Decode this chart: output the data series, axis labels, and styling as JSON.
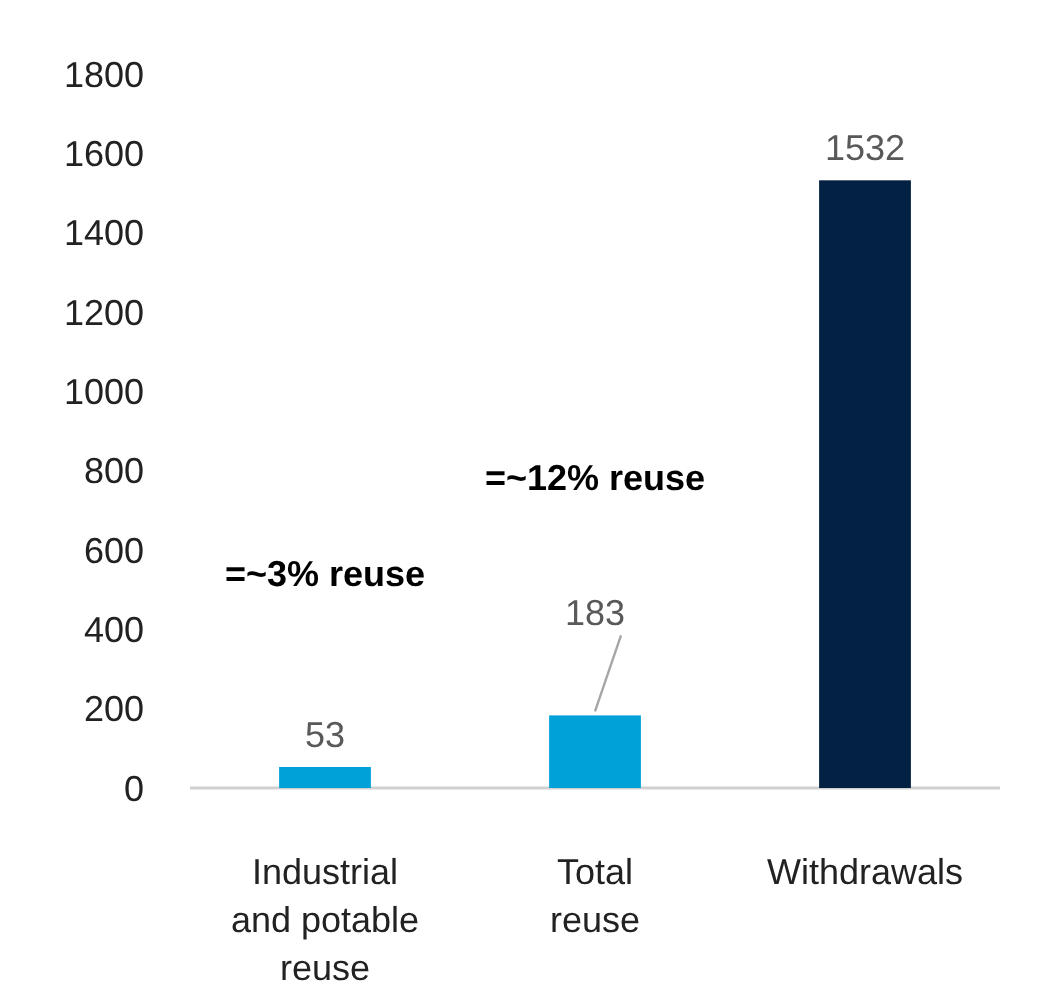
{
  "chart_data": {
    "type": "bar",
    "categories": [
      "Industrial and potable reuse",
      "Total reuse",
      "Withdrawals"
    ],
    "values": [
      53,
      183,
      1532
    ],
    "colors": [
      "#00a0d8",
      "#00a0d8",
      "#032142"
    ],
    "ylim": [
      0,
      1800
    ],
    "yticks": [
      0,
      200,
      400,
      600,
      800,
      1000,
      1200,
      1400,
      1600,
      1800
    ],
    "data_labels": true,
    "annotations": [
      "=~3% reuse",
      "=~12% reuse"
    ]
  }
}
